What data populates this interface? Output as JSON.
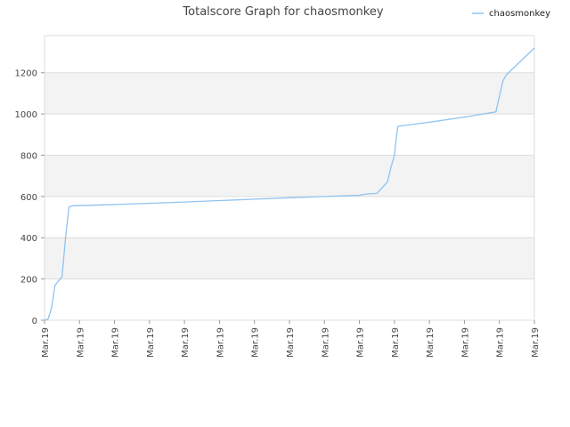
{
  "chart_data": {
    "type": "line",
    "title": "Totalscore Graph for chaosmonkey",
    "xlabel": "",
    "ylabel": "",
    "ylim": [
      0,
      1380
    ],
    "y_ticks": [
      0,
      200,
      400,
      600,
      800,
      1000,
      1200
    ],
    "x_tick_labels": [
      "Mar.19",
      "Mar.19",
      "Mar.19",
      "Mar.19",
      "Mar.19",
      "Mar.19",
      "Mar.19",
      "Mar.19",
      "Mar.19",
      "Mar.19",
      "Mar.19",
      "Mar.19",
      "Mar.19",
      "Mar.19",
      "Mar.19"
    ],
    "grid": "horizontal bands",
    "legend_position": "top-right",
    "colors": {
      "series": "#8fc3f0",
      "band": "#f3f3f3",
      "band_top": "#eeeeee",
      "grid": "#dddddd"
    },
    "series": [
      {
        "name": "chaosmonkey",
        "x": [
          0.0,
          0.1,
          0.2,
          0.3,
          0.5,
          0.6,
          0.7,
          0.75,
          0.8,
          2.0,
          3.0,
          4.0,
          5.0,
          6.0,
          7.0,
          8.0,
          9.0,
          9.2,
          9.5,
          9.8,
          9.9,
          10.0,
          10.05,
          10.1,
          11.0,
          12.0,
          12.9,
          13.1,
          13.2,
          14.0
        ],
        "values": [
          0,
          5,
          60,
          170,
          210,
          400,
          550,
          552,
          555,
          561,
          567,
          573,
          580,
          587,
          594,
          600,
          606,
          612,
          615,
          670,
          740,
          800,
          880,
          940,
          960,
          985,
          1010,
          1160,
          1190,
          1320
        ]
      }
    ]
  }
}
